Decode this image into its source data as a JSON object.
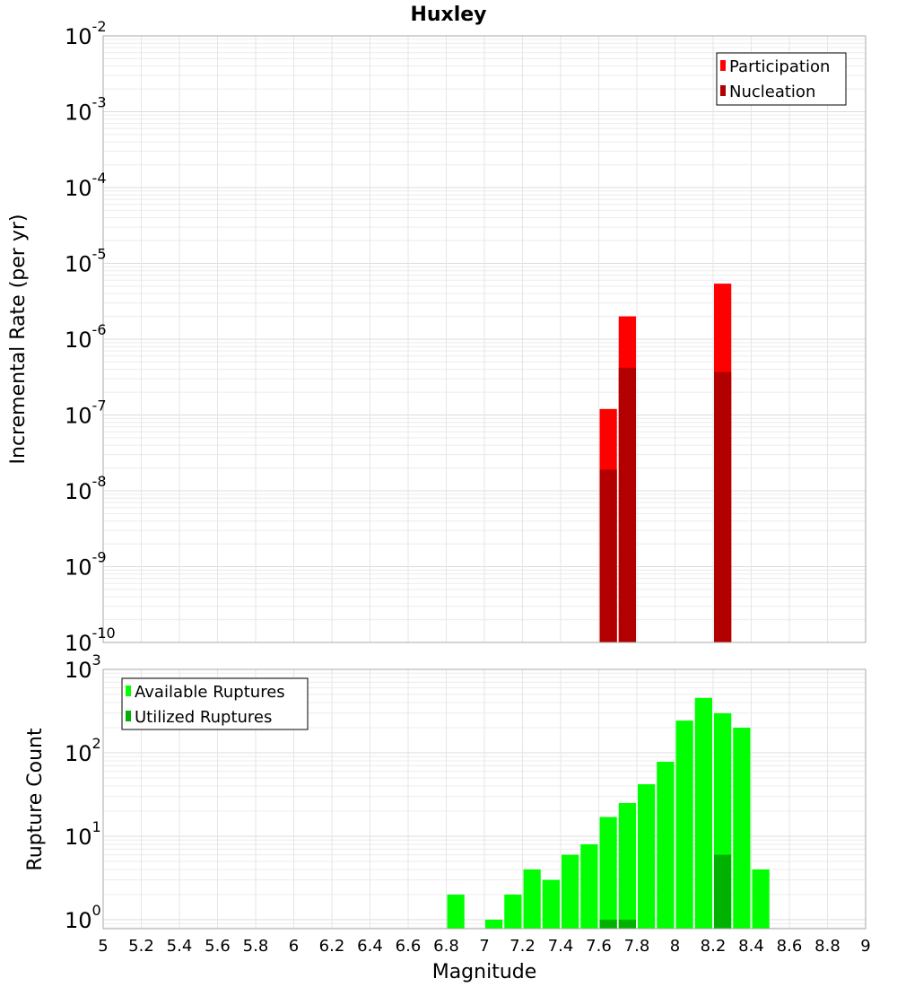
{
  "chart_data": [
    {
      "type": "bar",
      "title": "Huxley",
      "xlabel": "Magnitude",
      "ylabel": "Incremental Rate (per yr)",
      "yscale": "log",
      "xlim": [
        5,
        9
      ],
      "ylim": [
        1e-10,
        0.01
      ],
      "bin_width": 0.1,
      "grid": true,
      "legend_position": "top-right",
      "series": [
        {
          "name": "Participation",
          "color": "#ff0000",
          "x": [
            7.65,
            7.75,
            8.25
          ],
          "values": [
            1.2e-07,
            2e-06,
            5.4e-06
          ]
        },
        {
          "name": "Nucleation",
          "color": "#b20000",
          "x": [
            7.65,
            7.75,
            8.25
          ],
          "values": [
            1.9e-08,
            4.2e-07,
            3.7e-07
          ]
        }
      ],
      "y_ticks": [
        {
          "base": "10",
          "exp": "-10"
        },
        {
          "base": "10",
          "exp": "-9"
        },
        {
          "base": "10",
          "exp": "-8"
        },
        {
          "base": "10",
          "exp": "-7"
        },
        {
          "base": "10",
          "exp": "-6"
        },
        {
          "base": "10",
          "exp": "-5"
        },
        {
          "base": "10",
          "exp": "-4"
        },
        {
          "base": "10",
          "exp": "-3"
        },
        {
          "base": "10",
          "exp": "-2"
        }
      ]
    },
    {
      "type": "bar",
      "xlabel": "Magnitude",
      "ylabel": "Rupture Count",
      "yscale": "log",
      "xlim": [
        5,
        9
      ],
      "ylim": [
        0.78,
        1000
      ],
      "bin_width": 0.1,
      "grid": true,
      "legend_position": "top-left",
      "series": [
        {
          "name": "Available Ruptures",
          "color": "#00ff00",
          "x": [
            6.85,
            7.05,
            7.15,
            7.25,
            7.35,
            7.45,
            7.55,
            7.65,
            7.75,
            7.85,
            7.95,
            8.05,
            8.15,
            8.25,
            8.35,
            8.45
          ],
          "values": [
            2,
            1,
            2,
            4,
            3,
            6,
            8,
            17,
            25,
            42,
            78,
            243,
            455,
            298,
            200,
            4
          ]
        },
        {
          "name": "Utilized Ruptures",
          "color": "#00b200",
          "x": [
            7.65,
            7.75,
            8.25
          ],
          "values": [
            1,
            1,
            6
          ]
        }
      ],
      "y_ticks": [
        {
          "base": "10",
          "exp": "0"
        },
        {
          "base": "10",
          "exp": "1"
        },
        {
          "base": "10",
          "exp": "2"
        },
        {
          "base": "10",
          "exp": "3"
        }
      ],
      "x_ticks": [
        "5",
        "5.2",
        "5.4",
        "5.6",
        "5.8",
        "6",
        "6.2",
        "6.4",
        "6.6",
        "6.8",
        "7",
        "7.2",
        "7.4",
        "7.6",
        "7.8",
        "8",
        "8.2",
        "8.4",
        "8.6",
        "8.8",
        "9"
      ]
    }
  ]
}
